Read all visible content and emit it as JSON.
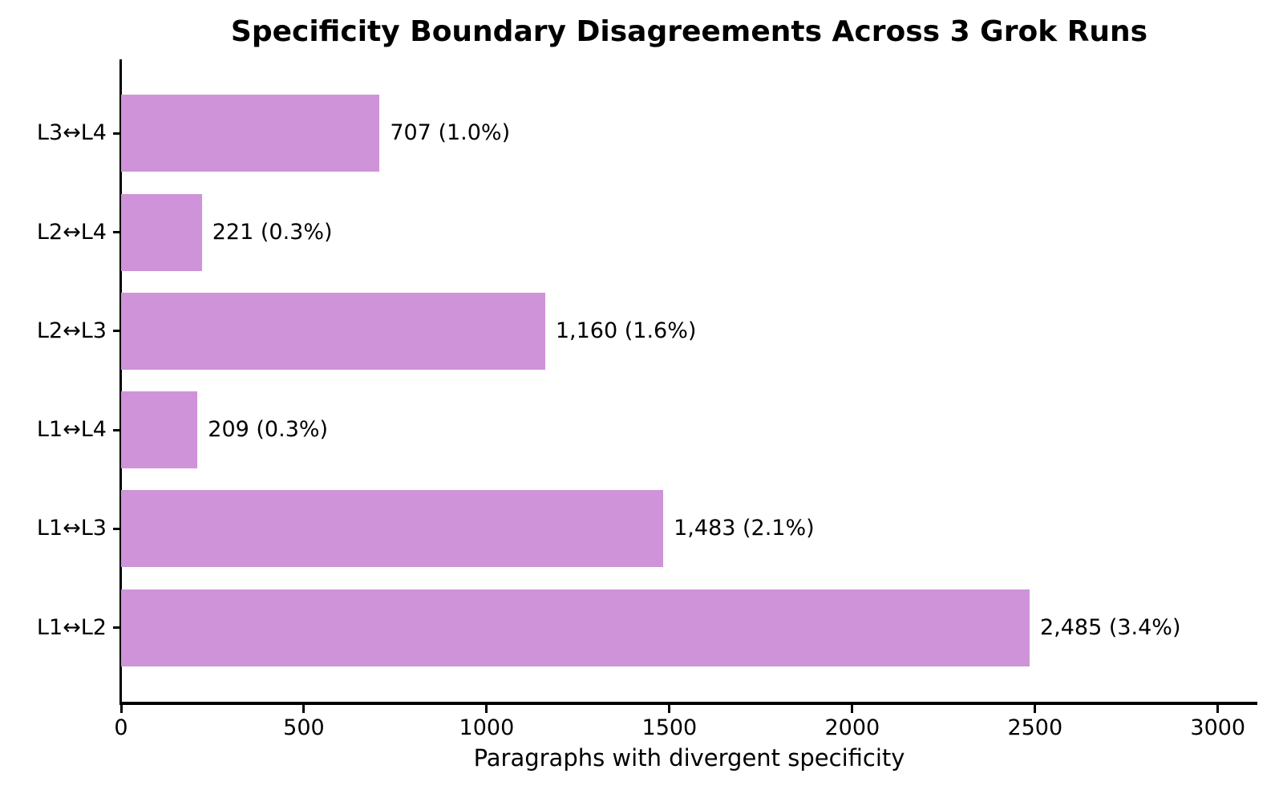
{
  "chart_data": {
    "type": "bar",
    "orientation": "horizontal",
    "title": "Specificity Boundary Disagreements Across 3 Grok Runs",
    "xlabel": "Paragraphs with divergent specificity",
    "xlim": [
      0,
      3108
    ],
    "x_ticks": [
      "0",
      "500",
      "1000",
      "1500",
      "2000",
      "2500",
      "3000"
    ],
    "x_tick_values": [
      0,
      500,
      1000,
      1500,
      2000,
      2500,
      3000
    ],
    "bar_color": "#CE93D8",
    "axis_color": "#000000",
    "text_color": "#000000",
    "grid": "off",
    "legend": "none",
    "bars": [
      {
        "category": "L3↔L4",
        "value": 707,
        "label": "707 (1.0%)"
      },
      {
        "category": "L2↔L4",
        "value": 221,
        "label": "221 (0.3%)"
      },
      {
        "category": "L2↔L3",
        "value": 1160,
        "label": "1,160 (1.6%)"
      },
      {
        "category": "L1↔L4",
        "value": 209,
        "label": "209 (0.3%)"
      },
      {
        "category": "L1↔L3",
        "value": 1483,
        "label": "1,483 (2.1%)"
      },
      {
        "category": "L1↔L2",
        "value": 2485,
        "label": "2,485 (3.4%)"
      }
    ]
  }
}
